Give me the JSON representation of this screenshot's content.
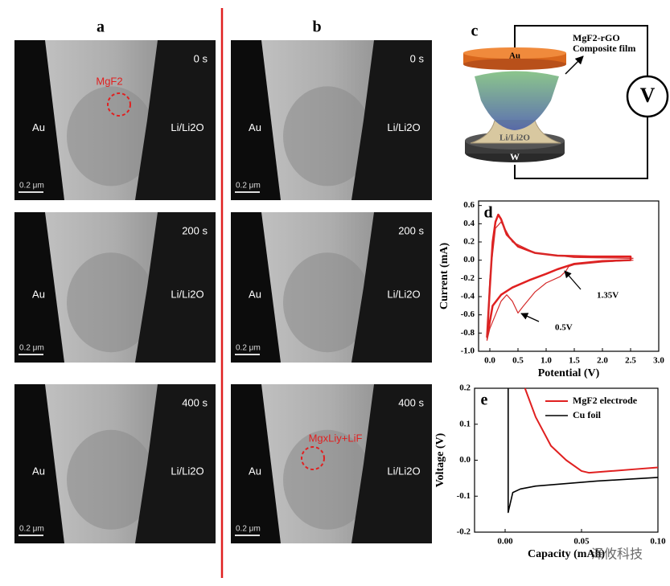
{
  "tem": {
    "left_label": "Au",
    "right_label": "Li/Li2O",
    "scale_bar": "0.2 μm",
    "columns": [
      {
        "label": "a",
        "frames": [
          {
            "time": "0 s",
            "annotation": "MgF2"
          },
          {
            "time": "200 s"
          },
          {
            "time": "400 s"
          }
        ]
      },
      {
        "label": "b",
        "frames": [
          {
            "time": "0 s"
          },
          {
            "time": "200 s"
          },
          {
            "time": "400 s",
            "annotation": "MgxLiy+LiF"
          }
        ]
      }
    ]
  },
  "schematic": {
    "panel": "c",
    "top_electrode": "Au",
    "film_label": [
      "MgF2-rGO",
      "Composite film"
    ],
    "base": "Li/Li2O",
    "bottom_electrode": "W",
    "meter": "V"
  },
  "chart_data": [
    {
      "type": "line",
      "panel": "d",
      "x_label": "Potential (V)",
      "y_label": "Current (mA)",
      "xlim": [
        -0.2,
        3.0
      ],
      "ylim": [
        -1.0,
        0.65
      ],
      "xticks": [
        {
          "value": 0,
          "label": "0.0"
        },
        0.5,
        {
          "value": 1,
          "label": "1.0"
        },
        1.5,
        {
          "value": 2,
          "label": "2.0"
        },
        2.5,
        {
          "value": 3,
          "label": "3.0"
        }
      ],
      "yticks": [
        {
          "value": -1,
          "label": "-1.0"
        },
        -0.8,
        -0.6,
        -0.4,
        -0.2,
        {
          "value": 0,
          "label": "0.0"
        },
        0.2,
        0.4,
        0.6
      ],
      "annotations": [
        "1.35V",
        "0.5V"
      ],
      "series": [
        {
          "color": "#e02020",
          "line_width": 2.5,
          "x": [
            -0.05,
            0.0,
            0.05,
            0.1,
            0.15,
            0.2,
            0.3,
            0.5,
            0.8,
            1.2,
            1.8,
            2.5,
            2.5,
            2.0,
            1.5,
            1.2,
            1.0,
            0.7,
            0.4,
            0.2,
            0.05,
            -0.05
          ],
          "values": [
            -0.85,
            -0.3,
            0.2,
            0.42,
            0.5,
            0.45,
            0.28,
            0.15,
            0.08,
            0.05,
            0.04,
            0.04,
            0.0,
            -0.01,
            -0.04,
            -0.1,
            -0.15,
            -0.22,
            -0.3,
            -0.38,
            -0.5,
            -0.85
          ]
        },
        {
          "color": "#d42a2a",
          "line_width": 1.2,
          "x": [
            2.55,
            2.0,
            1.5,
            1.4,
            1.35,
            1.25,
            1.0,
            0.8,
            0.6,
            0.5,
            0.4,
            0.3,
            0.2,
            0.1,
            0.0,
            -0.05,
            0.0,
            0.1,
            0.2,
            0.4,
            0.8,
            1.5,
            2.55
          ],
          "values": [
            0.0,
            -0.02,
            -0.05,
            -0.07,
            -0.12,
            -0.18,
            -0.25,
            -0.35,
            -0.5,
            -0.58,
            -0.45,
            -0.38,
            -0.45,
            -0.6,
            -0.75,
            -0.88,
            -0.2,
            0.35,
            0.42,
            0.2,
            0.08,
            0.03,
            0.02
          ]
        }
      ]
    },
    {
      "type": "line",
      "panel": "e",
      "x_label": "Capacity (mAh)",
      "y_label": "Voltage (V)",
      "xlim": [
        -0.02,
        0.1
      ],
      "ylim": [
        -0.2,
        0.2
      ],
      "xticks": [
        {
          "value": 0,
          "label": "0.00"
        },
        {
          "value": 0.05,
          "label": "0.05"
        },
        {
          "value": 0.1,
          "label": "0.10"
        }
      ],
      "yticks": [
        -0.2,
        -0.1,
        {
          "value": 0,
          "label": "0.0"
        },
        0.1,
        0.2
      ],
      "legend": "upper right",
      "series": [
        {
          "name": "MgF2 electrode",
          "color": "#e02020",
          "line_width": 2,
          "x": [
            0.013,
            0.02,
            0.03,
            0.04,
            0.05,
            0.055,
            0.07,
            0.085,
            0.1
          ],
          "values": [
            0.2,
            0.12,
            0.04,
            0.0,
            -0.03,
            -0.035,
            -0.03,
            -0.025,
            -0.02
          ]
        },
        {
          "name": "Cu foil",
          "color": "#000000",
          "line_width": 1.6,
          "x": [
            0.002,
            0.002,
            0.005,
            0.01,
            0.02,
            0.04,
            0.06,
            0.08,
            0.1
          ],
          "values": [
            0.2,
            -0.145,
            -0.09,
            -0.08,
            -0.072,
            -0.065,
            -0.058,
            -0.053,
            -0.048
          ]
        }
      ]
    }
  ],
  "watermark": "泽攸科技"
}
